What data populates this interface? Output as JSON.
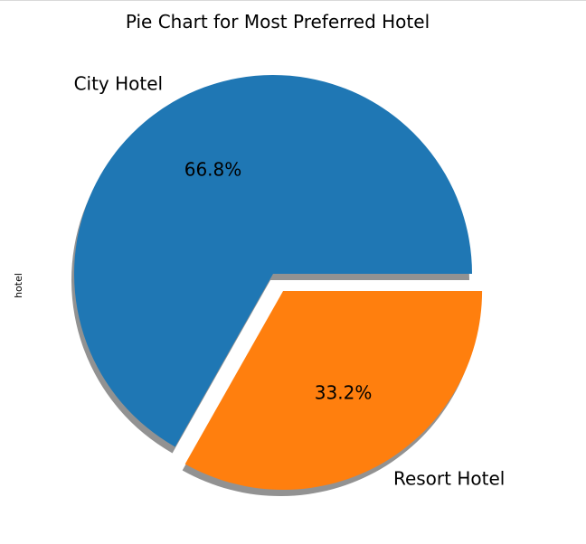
{
  "chart_data": {
    "type": "pie",
    "title": "Pie Chart for Most Preferred Hotel",
    "ylabel": "hotel",
    "slices": [
      {
        "label": "City Hotel",
        "value": 66.8,
        "pct_label": "66.8%",
        "color": "#1f77b4",
        "explode": 0.0
      },
      {
        "label": "Resort Hotel",
        "value": 33.2,
        "pct_label": "33.2%",
        "color": "#ff7f0e",
        "explode": 0.1
      }
    ],
    "shadow": true,
    "start_angle_deg": 0,
    "direction": "counterclockwise",
    "legend": "none"
  }
}
